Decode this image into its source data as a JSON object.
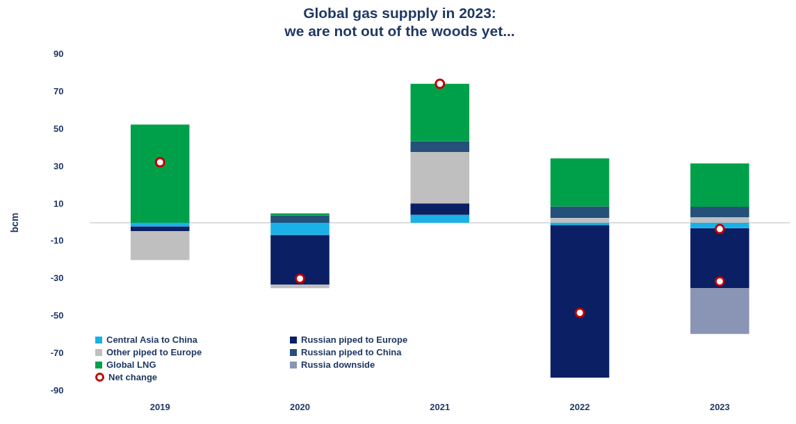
{
  "chart_data": {
    "type": "bar",
    "stacked": true,
    "title": "Global gas suppply in 2023:\nwe are not out of the woods yet...",
    "ylabel": "bcm",
    "categories": [
      "2019",
      "2020",
      "2021",
      "2022",
      "2023"
    ],
    "ylim": [
      -90,
      90
    ],
    "yticks": [
      -90,
      -70,
      -50,
      -30,
      -10,
      10,
      30,
      50,
      70,
      90
    ],
    "grid": false,
    "legend": "bottom left",
    "marker": "circle",
    "series": [
      {
        "name": "Central Asia to China",
        "color": "#1ab0e8",
        "values": [
          -2,
          -6.5,
          4.1,
          -1.2,
          -2.9
        ]
      },
      {
        "name": "Russian piped to Europe",
        "color": "#0a1f64",
        "values": [
          -2.5,
          -26.6,
          6.2,
          -81.7,
          -32
        ]
      },
      {
        "name": "Other piped to Europe",
        "color": "#bfbfbf",
        "values": [
          -15.5,
          -1.9,
          27.5,
          2.5,
          2.9
        ]
      },
      {
        "name": "Russian piped to China",
        "color": "#24507a",
        "values": [
          null,
          3.8,
          5.8,
          6.1,
          5.6
        ]
      },
      {
        "name": "Global LNG",
        "color": "#00a04a",
        "values": [
          52.5,
          1.2,
          30.7,
          25.8,
          23.2
        ]
      },
      {
        "name": "Russia downside",
        "color": "#8a94b4",
        "values": [
          null,
          null,
          null,
          null,
          -24.6
        ]
      },
      {
        "name": "Net change",
        "type": "scatter",
        "color": "#c00000",
        "values": [
          32.3,
          -29.9,
          74.3,
          -48.2,
          -3.4
        ]
      },
      {
        "type": "scatter",
        "color": "#c00000",
        "values": [
          null,
          null,
          null,
          null,
          -31.4
        ]
      }
    ]
  }
}
